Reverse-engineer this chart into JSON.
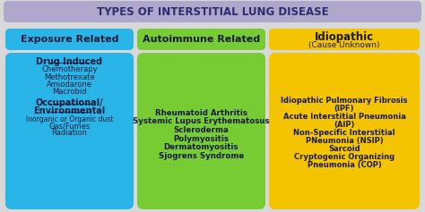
{
  "title": "TYPES OF INTERSTITIAL LUNG DISEASE",
  "title_bg": "#b0a8cc",
  "title_color": "#2c2c6e",
  "bg_color": "#d8d8d8",
  "col1_header": "Exposure Related",
  "col1_header_bg": "#29b5e8",
  "col1_body_bg": "#29b5e8",
  "col2_header": "Autoimmune Related",
  "col2_header_bg": "#77cc33",
  "col2_body_bg": "#77cc33",
  "col3_header_line1": "Idiopathic",
  "col3_header_line2": "(Cause Unknown)",
  "col3_header_bg": "#f5c400",
  "col3_body_bg": "#f5c400",
  "text_dark": "#1a1a3a",
  "col1_lines": [
    {
      "text": "Drug Induced",
      "bold": true,
      "underline": true,
      "size": 7.0
    },
    {
      "text": "Chemotherapy",
      "bold": false,
      "underline": false,
      "size": 6.0
    },
    {
      "text": "Methotrexate",
      "bold": false,
      "underline": false,
      "size": 6.0
    },
    {
      "text": "Amiodarone",
      "bold": false,
      "underline": false,
      "size": 6.0
    },
    {
      "text": "Macrobid",
      "bold": false,
      "underline": false,
      "size": 6.0
    },
    {
      "text": "",
      "bold": false,
      "underline": false,
      "size": 4.0
    },
    {
      "text": "Occupational/",
      "bold": true,
      "underline": true,
      "size": 7.0
    },
    {
      "text": "Environmental",
      "bold": true,
      "underline": true,
      "size": 7.0
    },
    {
      "text": "Inorganic or Organic dust",
      "bold": false,
      "underline": false,
      "size": 5.5
    },
    {
      "text": "Gas/Fumes",
      "bold": false,
      "underline": false,
      "size": 6.0
    },
    {
      "text": "Radiation",
      "bold": false,
      "underline": false,
      "size": 6.0
    }
  ],
  "col2_lines": [
    "Rheumatoid Arthritis",
    "Systemic Lupus Erythematosus",
    "Scleroderma",
    "Polymyositis",
    "Dermatomyositis",
    "Sjogrens Syndrome"
  ],
  "col3_lines": [
    "Idiopathic Pulmonary Fibrosis",
    "(IPF)",
    "Acute Interstitial Pneumonia",
    "(AIP)",
    "Non-Specific Interstitial",
    "PNeumonia (NSIP)",
    "Sarcoid",
    "Cryptogenic Organizing",
    "Pneumonia (COP)"
  ]
}
